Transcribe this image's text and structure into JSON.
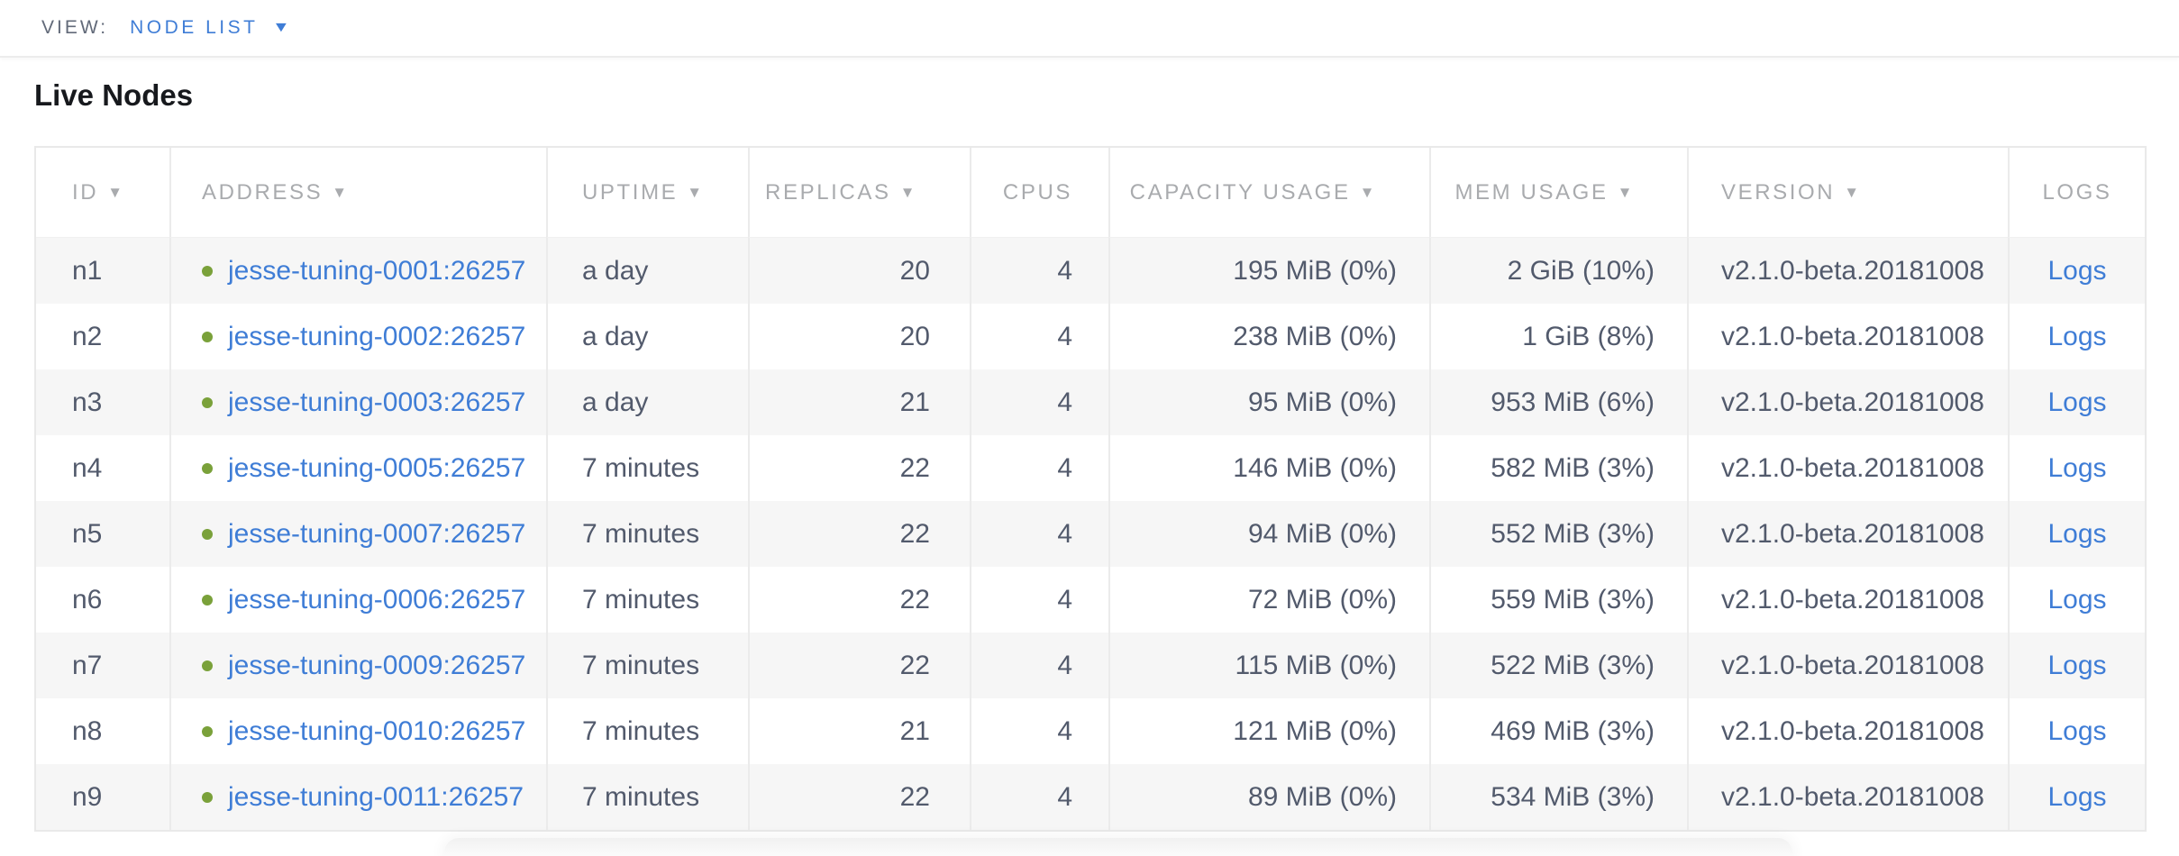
{
  "view_bar": {
    "label": "VIEW:",
    "selected": "NODE LIST",
    "chevron_icon": "▼"
  },
  "page": {
    "title": "Live Nodes"
  },
  "colors": {
    "link_blue": "#3f7dd6",
    "node_live_green": "#7aa13a",
    "header_gray": "#a9abae",
    "cell_text": "#525a6c",
    "row_stripe": "#f6f6f6"
  },
  "table": {
    "sort_icon": "▼",
    "logs_label": "Logs",
    "columns": [
      {
        "label": "ID",
        "sortable": true
      },
      {
        "label": "ADDRESS",
        "sortable": true
      },
      {
        "label": "UPTIME",
        "sortable": true
      },
      {
        "label": "REPLICAS",
        "sortable": true
      },
      {
        "label": "CPUS",
        "sortable": false
      },
      {
        "label": "CAPACITY USAGE",
        "sortable": true
      },
      {
        "label": "MEM USAGE",
        "sortable": true
      },
      {
        "label": "VERSION",
        "sortable": true
      },
      {
        "label": "LOGS",
        "sortable": false
      }
    ],
    "rows": [
      {
        "id": "n1",
        "status": "live",
        "address": "jesse-tuning-0001:26257",
        "uptime": "a day",
        "replicas": "20",
        "cpus": "4",
        "capacity_usage": "195 MiB (0%)",
        "mem_usage": "2 GiB (10%)",
        "version": "v2.1.0-beta.20181008"
      },
      {
        "id": "n2",
        "status": "live",
        "address": "jesse-tuning-0002:26257",
        "uptime": "a day",
        "replicas": "20",
        "cpus": "4",
        "capacity_usage": "238 MiB (0%)",
        "mem_usage": "1 GiB (8%)",
        "version": "v2.1.0-beta.20181008"
      },
      {
        "id": "n3",
        "status": "live",
        "address": "jesse-tuning-0003:26257",
        "uptime": "a day",
        "replicas": "21",
        "cpus": "4",
        "capacity_usage": "95 MiB (0%)",
        "mem_usage": "953 MiB (6%)",
        "version": "v2.1.0-beta.20181008"
      },
      {
        "id": "n4",
        "status": "live",
        "address": "jesse-tuning-0005:26257",
        "uptime": "7 minutes",
        "replicas": "22",
        "cpus": "4",
        "capacity_usage": "146 MiB (0%)",
        "mem_usage": "582 MiB (3%)",
        "version": "v2.1.0-beta.20181008"
      },
      {
        "id": "n5",
        "status": "live",
        "address": "jesse-tuning-0007:26257",
        "uptime": "7 minutes",
        "replicas": "22",
        "cpus": "4",
        "capacity_usage": "94 MiB (0%)",
        "mem_usage": "552 MiB (3%)",
        "version": "v2.1.0-beta.20181008"
      },
      {
        "id": "n6",
        "status": "live",
        "address": "jesse-tuning-0006:26257",
        "uptime": "7 minutes",
        "replicas": "22",
        "cpus": "4",
        "capacity_usage": "72 MiB (0%)",
        "mem_usage": "559 MiB (3%)",
        "version": "v2.1.0-beta.20181008"
      },
      {
        "id": "n7",
        "status": "live",
        "address": "jesse-tuning-0009:26257",
        "uptime": "7 minutes",
        "replicas": "22",
        "cpus": "4",
        "capacity_usage": "115 MiB (0%)",
        "mem_usage": "522 MiB (3%)",
        "version": "v2.1.0-beta.20181008"
      },
      {
        "id": "n8",
        "status": "live",
        "address": "jesse-tuning-0010:26257",
        "uptime": "7 minutes",
        "replicas": "21",
        "cpus": "4",
        "capacity_usage": "121 MiB (0%)",
        "mem_usage": "469 MiB (3%)",
        "version": "v2.1.0-beta.20181008"
      },
      {
        "id": "n9",
        "status": "live",
        "address": "jesse-tuning-0011:26257",
        "uptime": "7 minutes",
        "replicas": "22",
        "cpus": "4",
        "capacity_usage": "89 MiB (0%)",
        "mem_usage": "534 MiB (3%)",
        "version": "v2.1.0-beta.20181008"
      }
    ]
  }
}
